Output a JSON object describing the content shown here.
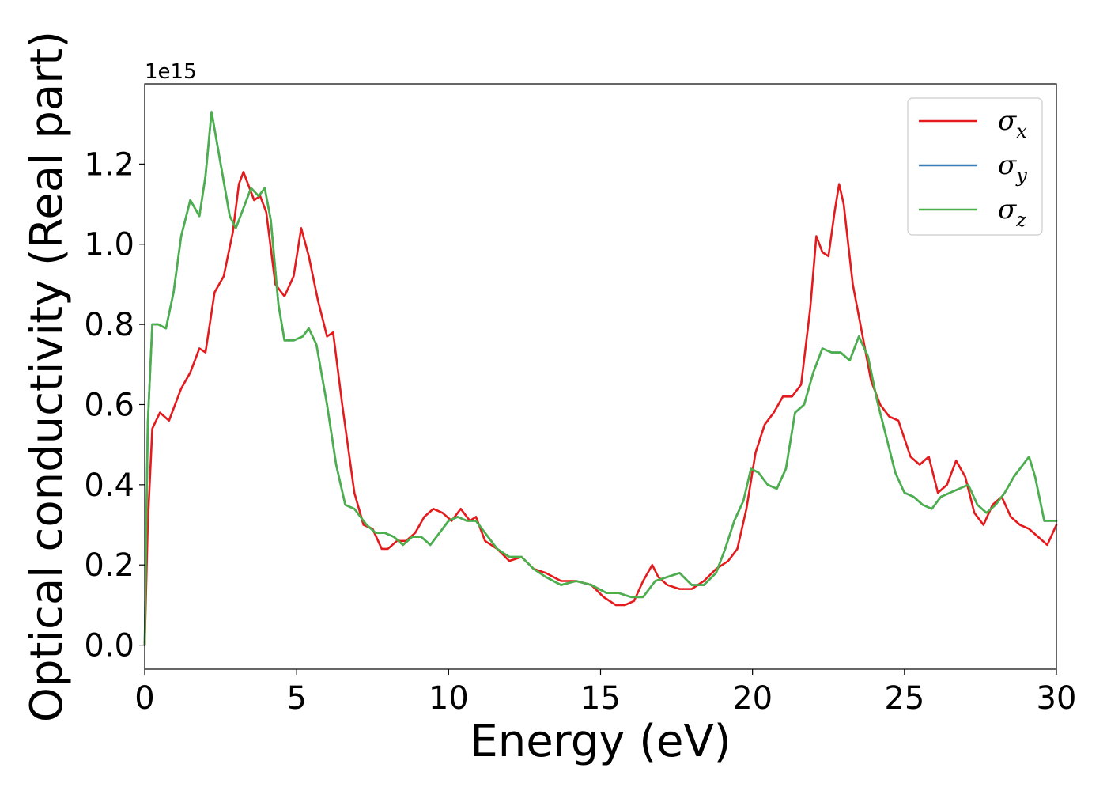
{
  "chart_data": {
    "type": "line",
    "xlabel": "Energy (eV)",
    "ylabel": "Optical conductivity (Real part)",
    "y_offset_label": "1e15",
    "xlim": [
      0,
      30
    ],
    "ylim": [
      -0.06,
      1.4
    ],
    "xticks": [
      0,
      5,
      10,
      15,
      20,
      25,
      30
    ],
    "xtick_labels": [
      "0",
      "5",
      "10",
      "15",
      "20",
      "25",
      "30"
    ],
    "yticks": [
      0.0,
      0.2,
      0.4,
      0.6,
      0.8,
      1.0,
      1.2
    ],
    "ytick_labels": [
      "0.0",
      "0.2",
      "0.4",
      "0.6",
      "0.8",
      "1.0",
      "1.2"
    ],
    "grid": false,
    "legend_position": "top-right",
    "series": [
      {
        "name": "σx",
        "legend_symbol": "σ",
        "legend_subscript": "x",
        "color": "#e41a1c",
        "x": [
          0,
          0.1,
          0.25,
          0.5,
          0.8,
          1.2,
          1.5,
          1.8,
          2.0,
          2.3,
          2.6,
          2.9,
          3.1,
          3.25,
          3.4,
          3.6,
          3.8,
          4.0,
          4.3,
          4.6,
          4.9,
          5.15,
          5.4,
          5.7,
          6.0,
          6.2,
          6.5,
          6.9,
          7.2,
          7.5,
          7.8,
          8.0,
          8.3,
          8.6,
          8.9,
          9.2,
          9.5,
          9.8,
          10.1,
          10.4,
          10.7,
          10.9,
          11.2,
          11.6,
          12.0,
          12.4,
          12.8,
          13.2,
          13.7,
          14.2,
          14.7,
          15.1,
          15.5,
          15.8,
          16.1,
          16.4,
          16.7,
          16.9,
          17.2,
          17.6,
          18.0,
          18.4,
          18.8,
          19.2,
          19.5,
          19.8,
          20.1,
          20.4,
          20.7,
          21.0,
          21.3,
          21.6,
          21.9,
          22.1,
          22.3,
          22.5,
          22.7,
          22.85,
          23.0,
          23.3,
          23.6,
          23.9,
          24.2,
          24.5,
          24.8,
          25.2,
          25.5,
          25.8,
          26.1,
          26.4,
          26.7,
          27.0,
          27.3,
          27.6,
          27.9,
          28.2,
          28.5,
          28.8,
          29.1,
          29.4,
          29.7,
          30.0
        ],
        "values": [
          0.0,
          0.3,
          0.54,
          0.58,
          0.56,
          0.64,
          0.68,
          0.74,
          0.73,
          0.88,
          0.92,
          1.03,
          1.15,
          1.18,
          1.15,
          1.11,
          1.12,
          1.08,
          0.9,
          0.87,
          0.92,
          1.04,
          0.97,
          0.86,
          0.77,
          0.78,
          0.6,
          0.38,
          0.3,
          0.29,
          0.24,
          0.24,
          0.26,
          0.26,
          0.28,
          0.32,
          0.34,
          0.33,
          0.31,
          0.34,
          0.31,
          0.32,
          0.26,
          0.24,
          0.21,
          0.22,
          0.19,
          0.18,
          0.16,
          0.16,
          0.15,
          0.12,
          0.1,
          0.1,
          0.11,
          0.16,
          0.2,
          0.17,
          0.15,
          0.14,
          0.14,
          0.16,
          0.19,
          0.21,
          0.24,
          0.34,
          0.48,
          0.55,
          0.58,
          0.62,
          0.62,
          0.65,
          0.84,
          1.02,
          0.98,
          0.97,
          1.08,
          1.15,
          1.1,
          0.9,
          0.78,
          0.66,
          0.6,
          0.57,
          0.56,
          0.47,
          0.45,
          0.47,
          0.38,
          0.4,
          0.46,
          0.42,
          0.33,
          0.3,
          0.35,
          0.37,
          0.32,
          0.3,
          0.29,
          0.27,
          0.25,
          0.3
        ]
      },
      {
        "name": "σy",
        "legend_symbol": "σ",
        "legend_subscript": "y",
        "color": "#377eb8",
        "x": [
          0,
          0.1,
          0.25,
          0.45,
          0.7,
          0.95,
          1.2,
          1.5,
          1.8,
          2.0,
          2.2,
          2.5,
          2.8,
          3.0,
          3.2,
          3.5,
          3.75,
          3.95,
          4.15,
          4.4,
          4.6,
          4.9,
          5.2,
          5.4,
          5.65,
          6.0,
          6.3,
          6.6,
          6.9,
          7.3,
          7.6,
          7.9,
          8.2,
          8.5,
          8.8,
          9.1,
          9.4,
          9.7,
          10.0,
          10.3,
          10.6,
          10.9,
          11.2,
          11.6,
          12.0,
          12.4,
          12.8,
          13.2,
          13.7,
          14.2,
          14.7,
          15.2,
          15.6,
          16.0,
          16.4,
          16.8,
          17.2,
          17.6,
          18.0,
          18.4,
          18.8,
          19.1,
          19.4,
          19.7,
          19.95,
          20.2,
          20.5,
          20.8,
          21.1,
          21.4,
          21.7,
          22.0,
          22.3,
          22.6,
          22.9,
          23.2,
          23.5,
          23.8,
          24.1,
          24.4,
          24.7,
          25.0,
          25.3,
          25.6,
          25.9,
          26.2,
          26.5,
          26.8,
          27.1,
          27.4,
          27.7,
          28.0,
          28.3,
          28.6,
          28.9,
          29.1,
          29.3,
          29.6,
          30.0
        ],
        "values": [
          0.0,
          0.55,
          0.8,
          0.8,
          0.79,
          0.88,
          1.02,
          1.11,
          1.07,
          1.17,
          1.33,
          1.2,
          1.07,
          1.04,
          1.08,
          1.14,
          1.12,
          1.14,
          1.06,
          0.85,
          0.76,
          0.76,
          0.77,
          0.79,
          0.75,
          0.6,
          0.45,
          0.35,
          0.34,
          0.3,
          0.28,
          0.28,
          0.27,
          0.25,
          0.27,
          0.27,
          0.25,
          0.28,
          0.31,
          0.32,
          0.31,
          0.31,
          0.28,
          0.24,
          0.22,
          0.22,
          0.19,
          0.17,
          0.15,
          0.16,
          0.15,
          0.13,
          0.13,
          0.12,
          0.12,
          0.16,
          0.17,
          0.18,
          0.15,
          0.15,
          0.18,
          0.24,
          0.31,
          0.36,
          0.44,
          0.43,
          0.4,
          0.39,
          0.44,
          0.58,
          0.6,
          0.68,
          0.74,
          0.73,
          0.73,
          0.71,
          0.77,
          0.72,
          0.61,
          0.52,
          0.43,
          0.38,
          0.37,
          0.35,
          0.34,
          0.37,
          0.38,
          0.39,
          0.4,
          0.35,
          0.33,
          0.35,
          0.38,
          0.42,
          0.45,
          0.47,
          0.42,
          0.31,
          0.31
        ]
      },
      {
        "name": "σz",
        "legend_symbol": "σ",
        "legend_subscript": "z",
        "color": "#4daf4a",
        "x": [
          0,
          0.1,
          0.25,
          0.45,
          0.7,
          0.95,
          1.2,
          1.5,
          1.8,
          2.0,
          2.2,
          2.5,
          2.8,
          3.0,
          3.2,
          3.5,
          3.75,
          3.95,
          4.15,
          4.4,
          4.6,
          4.9,
          5.2,
          5.4,
          5.65,
          6.0,
          6.3,
          6.6,
          6.9,
          7.3,
          7.6,
          7.9,
          8.2,
          8.5,
          8.8,
          9.1,
          9.4,
          9.7,
          10.0,
          10.3,
          10.6,
          10.9,
          11.2,
          11.6,
          12.0,
          12.4,
          12.8,
          13.2,
          13.7,
          14.2,
          14.7,
          15.2,
          15.6,
          16.0,
          16.4,
          16.8,
          17.2,
          17.6,
          18.0,
          18.4,
          18.8,
          19.1,
          19.4,
          19.7,
          19.95,
          20.2,
          20.5,
          20.8,
          21.1,
          21.4,
          21.7,
          22.0,
          22.3,
          22.6,
          22.9,
          23.2,
          23.5,
          23.8,
          24.1,
          24.4,
          24.7,
          25.0,
          25.3,
          25.6,
          25.9,
          26.2,
          26.5,
          26.8,
          27.1,
          27.4,
          27.7,
          28.0,
          28.3,
          28.6,
          28.9,
          29.1,
          29.3,
          29.6,
          30.0
        ],
        "values": [
          0.0,
          0.55,
          0.8,
          0.8,
          0.79,
          0.88,
          1.02,
          1.11,
          1.07,
          1.17,
          1.33,
          1.2,
          1.07,
          1.04,
          1.08,
          1.14,
          1.12,
          1.14,
          1.06,
          0.85,
          0.76,
          0.76,
          0.77,
          0.79,
          0.75,
          0.6,
          0.45,
          0.35,
          0.34,
          0.3,
          0.28,
          0.28,
          0.27,
          0.25,
          0.27,
          0.27,
          0.25,
          0.28,
          0.31,
          0.32,
          0.31,
          0.31,
          0.28,
          0.24,
          0.22,
          0.22,
          0.19,
          0.17,
          0.15,
          0.16,
          0.15,
          0.13,
          0.13,
          0.12,
          0.12,
          0.16,
          0.17,
          0.18,
          0.15,
          0.15,
          0.18,
          0.24,
          0.31,
          0.36,
          0.44,
          0.43,
          0.4,
          0.39,
          0.44,
          0.58,
          0.6,
          0.68,
          0.74,
          0.73,
          0.73,
          0.71,
          0.77,
          0.72,
          0.61,
          0.52,
          0.43,
          0.38,
          0.37,
          0.35,
          0.34,
          0.37,
          0.38,
          0.39,
          0.4,
          0.35,
          0.33,
          0.35,
          0.38,
          0.42,
          0.45,
          0.47,
          0.42,
          0.31,
          0.31
        ]
      }
    ]
  }
}
